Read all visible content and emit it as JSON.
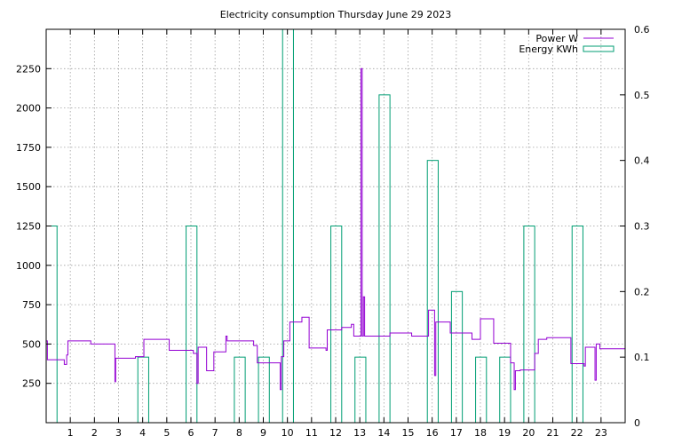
{
  "chart_data": {
    "type": "line",
    "title": "Electricity consumption Thursday June 29 2023",
    "legend_position": "top-right",
    "grid": true,
    "x": {
      "range": [
        0,
        24
      ],
      "ticks": [
        1,
        2,
        3,
        4,
        5,
        6,
        7,
        8,
        9,
        10,
        11,
        12,
        13,
        14,
        15,
        16,
        17,
        18,
        19,
        20,
        21,
        22,
        23
      ],
      "tick_labels": [
        "1",
        "2",
        "3",
        "4",
        "5",
        "6",
        "7",
        "8",
        "9",
        "10",
        "11",
        "12",
        "13",
        "14",
        "15",
        "16",
        "17",
        "18",
        "19",
        "20",
        "21",
        "22",
        "23"
      ]
    },
    "y_left": {
      "range": [
        0,
        2500
      ],
      "ticks": [
        250,
        500,
        750,
        1000,
        1250,
        1500,
        1750,
        2000,
        2250
      ],
      "tick_labels": [
        "250",
        "500",
        "750",
        "1000",
        "1250",
        "1500",
        "1750",
        "2000",
        "2250"
      ]
    },
    "y_right": {
      "range": [
        0,
        0.6
      ],
      "ticks": [
        0,
        0.1,
        0.2,
        0.3,
        0.4,
        0.5,
        0.6
      ],
      "tick_labels": [
        "0",
        "0.1",
        "0.2",
        "0.3",
        "0.4",
        "0.5",
        "0.6"
      ]
    },
    "series": [
      {
        "name": "Power W",
        "axis": "left",
        "style": "step",
        "color": "#9400d3",
        "points": [
          [
            0,
            520
          ],
          [
            0.05,
            400
          ],
          [
            0.7,
            400
          ],
          [
            0.75,
            370
          ],
          [
            0.85,
            430
          ],
          [
            0.9,
            520
          ],
          [
            1.8,
            520
          ],
          [
            1.85,
            500
          ],
          [
            2.8,
            500
          ],
          [
            2.85,
            260
          ],
          [
            2.88,
            410
          ],
          [
            3.6,
            410
          ],
          [
            3.7,
            420
          ],
          [
            3.95,
            420
          ],
          [
            4.05,
            530
          ],
          [
            5.05,
            530
          ],
          [
            5.1,
            460
          ],
          [
            6.0,
            460
          ],
          [
            6.1,
            440
          ],
          [
            6.25,
            250
          ],
          [
            6.3,
            480
          ],
          [
            6.6,
            480
          ],
          [
            6.65,
            330
          ],
          [
            6.9,
            330
          ],
          [
            6.95,
            450
          ],
          [
            7.4,
            450
          ],
          [
            7.45,
            550
          ],
          [
            7.5,
            520
          ],
          [
            8.55,
            520
          ],
          [
            8.6,
            490
          ],
          [
            8.75,
            380
          ],
          [
            9.65,
            380
          ],
          [
            9.7,
            210
          ],
          [
            9.75,
            420
          ],
          [
            9.85,
            520
          ],
          [
            10.05,
            520
          ],
          [
            10.1,
            640
          ],
          [
            10.55,
            640
          ],
          [
            10.6,
            670
          ],
          [
            10.85,
            670
          ],
          [
            10.9,
            475
          ],
          [
            11.55,
            475
          ],
          [
            11.6,
            460
          ],
          [
            11.65,
            590
          ],
          [
            12.2,
            590
          ],
          [
            12.25,
            605
          ],
          [
            12.6,
            605
          ],
          [
            12.65,
            625
          ],
          [
            12.75,
            550
          ],
          [
            12.95,
            550
          ],
          [
            13.05,
            2250
          ],
          [
            13.1,
            550
          ],
          [
            13.15,
            800
          ],
          [
            13.2,
            550
          ],
          [
            14.2,
            550
          ],
          [
            14.25,
            570
          ],
          [
            15.1,
            570
          ],
          [
            15.15,
            550
          ],
          [
            15.8,
            550
          ],
          [
            15.85,
            715
          ],
          [
            16.05,
            715
          ],
          [
            16.1,
            300
          ],
          [
            16.15,
            640
          ],
          [
            16.7,
            640
          ],
          [
            16.75,
            570
          ],
          [
            17.6,
            570
          ],
          [
            17.65,
            530
          ],
          [
            17.95,
            530
          ],
          [
            18.0,
            660
          ],
          [
            18.5,
            660
          ],
          [
            18.55,
            505
          ],
          [
            19.2,
            505
          ],
          [
            19.25,
            380
          ],
          [
            19.35,
            380
          ],
          [
            19.4,
            210
          ],
          [
            19.45,
            330
          ],
          [
            19.6,
            330
          ],
          [
            19.65,
            335
          ],
          [
            20.2,
            335
          ],
          [
            20.25,
            440
          ],
          [
            20.35,
            440
          ],
          [
            20.4,
            530
          ],
          [
            20.7,
            530
          ],
          [
            20.75,
            540
          ],
          [
            21.7,
            540
          ],
          [
            21.75,
            375
          ],
          [
            22.25,
            375
          ],
          [
            22.3,
            360
          ],
          [
            22.35,
            480
          ],
          [
            22.7,
            480
          ],
          [
            22.75,
            270
          ],
          [
            22.8,
            500
          ],
          [
            22.9,
            500
          ],
          [
            22.95,
            470
          ],
          [
            24,
            470
          ]
        ]
      },
      {
        "name": "Energy KWh",
        "axis": "right",
        "style": "bars",
        "color": "#009e73",
        "bars": [
          [
            0,
            0.3
          ],
          [
            3.8,
            0.1
          ],
          [
            5.8,
            0.3
          ],
          [
            7.8,
            0.1
          ],
          [
            8.8,
            0.1
          ],
          [
            9.8,
            0.6
          ],
          [
            11.8,
            0.3
          ],
          [
            12.8,
            0.1
          ],
          [
            13.8,
            0.5
          ],
          [
            15.8,
            0.4
          ],
          [
            16.8,
            0.2
          ],
          [
            17.8,
            0.1
          ],
          [
            18.8,
            0.1
          ],
          [
            19.8,
            0.3
          ],
          [
            21.8,
            0.3
          ]
        ],
        "bar_width_x": 0.45
      }
    ]
  }
}
